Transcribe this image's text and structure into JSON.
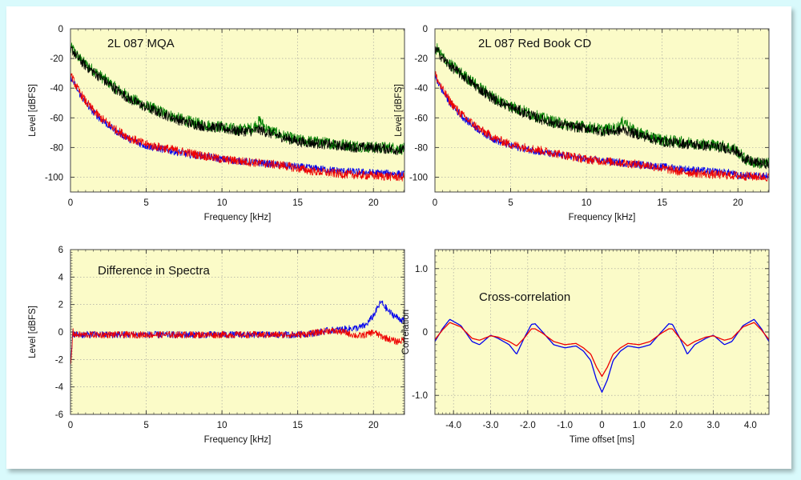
{
  "chart_data": [
    {
      "type": "line",
      "title": "2L 087 MQA",
      "xlabel": "Frequency [kHz]",
      "ylabel": "Level [dBFS]",
      "xlim": [
        0,
        22.05
      ],
      "ylim": [
        -110,
        0
      ],
      "x_ticks": [
        0,
        5,
        10,
        15,
        20
      ],
      "y_ticks": [
        0,
        -20,
        -40,
        -60,
        -80,
        -100
      ],
      "grid": true,
      "series": [
        {
          "color": "#008000",
          "noise": 4,
          "x": [
            0,
            0.1,
            0.3,
            0.6,
            1,
            1.5,
            2,
            3,
            4,
            5,
            6,
            7,
            8,
            9,
            10,
            11,
            12,
            12.5,
            13,
            14,
            15,
            16,
            17,
            18,
            19,
            20,
            21,
            22
          ],
          "values": [
            -15,
            -13,
            -16,
            -20,
            -24,
            -28,
            -32,
            -40,
            -47,
            -52,
            -56,
            -60,
            -63,
            -65,
            -66,
            -68,
            -67,
            -62,
            -68,
            -72,
            -75,
            -76,
            -77,
            -78,
            -79,
            -80,
            -80,
            -81
          ]
        },
        {
          "color": "#000000",
          "noise": 3.5,
          "x": [
            0,
            0.1,
            0.3,
            0.6,
            1,
            1.5,
            2,
            3,
            4,
            5,
            6,
            7,
            8,
            9,
            10,
            11,
            12,
            12.5,
            13,
            14,
            15,
            16,
            17,
            18,
            19,
            20,
            21,
            22
          ],
          "values": [
            -16,
            -14,
            -17,
            -21,
            -25,
            -29,
            -33,
            -41,
            -48,
            -53,
            -57,
            -61,
            -64,
            -66,
            -67,
            -69,
            -69,
            -68,
            -70,
            -73,
            -76,
            -77,
            -78,
            -79,
            -80,
            -80,
            -81,
            -82
          ]
        },
        {
          "color": "#0000ee",
          "noise": 2.5,
          "x": [
            0,
            0.2,
            0.5,
            1,
            1.5,
            2,
            3,
            4,
            5,
            6,
            7,
            8,
            9,
            10,
            12,
            14,
            15,
            16,
            17,
            18,
            20,
            22
          ],
          "values": [
            -32,
            -36,
            -42,
            -50,
            -56,
            -61,
            -69,
            -75,
            -79,
            -81,
            -83,
            -85,
            -86,
            -88,
            -90,
            -92,
            -93,
            -94,
            -95,
            -96,
            -97,
            -98
          ]
        },
        {
          "color": "#ee0000",
          "noise": 3,
          "x": [
            0,
            0.2,
            0.5,
            1,
            1.5,
            2,
            3,
            4,
            5,
            6,
            7,
            8,
            9,
            10,
            12,
            14,
            15,
            16,
            17,
            18,
            20,
            22
          ],
          "values": [
            -30,
            -35,
            -41,
            -49,
            -55,
            -60,
            -68,
            -74,
            -78,
            -80,
            -82,
            -84,
            -86,
            -88,
            -90,
            -92,
            -94,
            -96,
            -97,
            -98,
            -99,
            -100
          ]
        }
      ]
    },
    {
      "type": "line",
      "title": "2L 087 Red Book CD",
      "xlabel": "Frequency [kHz]",
      "ylabel": "Level [dBFS]",
      "xlim": [
        0,
        22.05
      ],
      "ylim": [
        -110,
        0
      ],
      "x_ticks": [
        0,
        5,
        10,
        15,
        20
      ],
      "y_ticks": [
        0,
        -20,
        -40,
        -60,
        -80,
        -100
      ],
      "grid": true,
      "series": [
        {
          "color": "#008000",
          "noise": 4,
          "x": [
            0,
            0.1,
            0.3,
            0.6,
            1,
            1.5,
            2,
            3,
            4,
            5,
            6,
            7,
            8,
            9,
            10,
            11,
            12,
            12.5,
            13,
            14,
            15,
            16,
            17,
            18,
            19,
            19.8,
            20.5,
            21,
            22
          ],
          "values": [
            -15,
            -13,
            -16,
            -20,
            -24,
            -28,
            -32,
            -40,
            -47,
            -52,
            -56,
            -60,
            -63,
            -65,
            -66,
            -68,
            -67,
            -62,
            -68,
            -72,
            -75,
            -76,
            -77,
            -78,
            -79,
            -81,
            -88,
            -90,
            -91
          ]
        },
        {
          "color": "#000000",
          "noise": 3.5,
          "x": [
            0,
            0.1,
            0.3,
            0.6,
            1,
            1.5,
            2,
            3,
            4,
            5,
            6,
            7,
            8,
            9,
            10,
            11,
            12,
            12.5,
            13,
            14,
            15,
            16,
            17,
            18,
            19,
            19.8,
            20.5,
            21,
            22
          ],
          "values": [
            -16,
            -14,
            -17,
            -21,
            -25,
            -29,
            -33,
            -41,
            -48,
            -53,
            -57,
            -61,
            -64,
            -66,
            -67,
            -69,
            -69,
            -68,
            -70,
            -73,
            -76,
            -77,
            -78,
            -79,
            -80,
            -82,
            -88,
            -90,
            -91
          ]
        },
        {
          "color": "#0000ee",
          "noise": 2.5,
          "x": [
            0,
            0.2,
            0.5,
            1,
            1.5,
            2,
            3,
            4,
            5,
            6,
            7,
            8,
            9,
            10,
            12,
            14,
            15,
            16,
            17,
            18,
            19.5,
            20,
            22
          ],
          "values": [
            -32,
            -36,
            -42,
            -50,
            -56,
            -61,
            -69,
            -75,
            -79,
            -81,
            -83,
            -85,
            -86,
            -88,
            -90,
            -92,
            -93,
            -94,
            -95,
            -96,
            -97,
            -99,
            -99
          ]
        },
        {
          "color": "#ee0000",
          "noise": 3,
          "x": [
            0,
            0.2,
            0.5,
            1,
            1.5,
            2,
            3,
            4,
            5,
            6,
            7,
            8,
            9,
            10,
            12,
            14,
            15,
            16,
            17,
            18,
            20,
            22
          ],
          "values": [
            -30,
            -35,
            -41,
            -49,
            -55,
            -60,
            -68,
            -74,
            -78,
            -80,
            -82,
            -84,
            -86,
            -88,
            -90,
            -92,
            -94,
            -96,
            -97,
            -98,
            -99,
            -100
          ]
        }
      ]
    },
    {
      "type": "line",
      "title": "Difference in Spectra",
      "xlabel": "Frequency [kHz]",
      "ylabel": "Level [dBFS]",
      "xlim": [
        0,
        22.05
      ],
      "ylim": [
        -6,
        6
      ],
      "x_ticks": [
        0,
        5,
        10,
        15,
        20
      ],
      "y_ticks": [
        6,
        4,
        2,
        0,
        -2,
        -4,
        -6
      ],
      "grid": true,
      "series": [
        {
          "color": "#0000ee",
          "noise": 0.25,
          "x": [
            0,
            0.08,
            0.15,
            0.2,
            0.3,
            1,
            5,
            10,
            14,
            15,
            16,
            17,
            18,
            19,
            19.5,
            20,
            20.5,
            21,
            21.5,
            22
          ],
          "values": [
            -2.3,
            -1.5,
            0.1,
            -0.1,
            -0.2,
            -0.2,
            -0.2,
            -0.2,
            -0.2,
            -0.2,
            -0.1,
            0.1,
            0.2,
            0.3,
            0.5,
            1.2,
            2.2,
            1.5,
            1.1,
            0.8
          ]
        },
        {
          "color": "#ee0000",
          "noise": 0.25,
          "x": [
            0,
            0.08,
            0.15,
            0.2,
            0.3,
            1,
            5,
            10,
            14,
            15,
            16,
            17,
            18,
            19,
            19.5,
            20,
            20.5,
            21,
            21.5,
            22
          ],
          "values": [
            -2.5,
            -1.5,
            0.1,
            -0.1,
            -0.2,
            -0.2,
            -0.2,
            -0.2,
            -0.2,
            -0.2,
            -0.1,
            0.1,
            0,
            -0.3,
            -0.2,
            0,
            -0.3,
            -0.5,
            -0.7,
            -0.6
          ]
        }
      ]
    },
    {
      "type": "line",
      "title": "Cross-correlation",
      "xlabel": "Time offset [ms]",
      "ylabel": "Correlation",
      "xlim": [
        -4.5,
        4.5
      ],
      "ylim": [
        -1.3,
        1.3
      ],
      "x_ticks": [
        -4.0,
        -3.0,
        -2.0,
        -1.0,
        0,
        1.0,
        2.0,
        3.0,
        4.0
      ],
      "x_tick_labels": [
        "-4.0",
        "-3.0",
        "-2.0",
        "-1.0",
        "0",
        "1.0",
        "2.0",
        "3.0",
        "4.0"
      ],
      "y_ticks": [
        1.0,
        0,
        -1.0
      ],
      "y_tick_labels": [
        "1.0",
        "0",
        "-1.0"
      ],
      "grid": true,
      "series": [
        {
          "color": "#0000ee",
          "noise": 0,
          "x": [
            -4.5,
            -4.3,
            -4.1,
            -3.8,
            -3.5,
            -3.3,
            -3,
            -2.8,
            -2.5,
            -2.3,
            -2.1,
            -1.9,
            -1.8,
            -1.6,
            -1.3,
            -1,
            -0.7,
            -0.5,
            -0.3,
            -0.15,
            0,
            0.15,
            0.3,
            0.5,
            0.7,
            1,
            1.3,
            1.6,
            1.8,
            1.9,
            2.1,
            2.3,
            2.5,
            2.8,
            3,
            3.3,
            3.5,
            3.8,
            4.1,
            4.3,
            4.5
          ],
          "values": [
            -0.15,
            0.05,
            0.2,
            0.1,
            -0.15,
            -0.2,
            -0.05,
            -0.1,
            -0.2,
            -0.35,
            -0.1,
            0.12,
            0.13,
            0,
            -0.2,
            -0.25,
            -0.22,
            -0.3,
            -0.45,
            -0.75,
            -0.95,
            -0.75,
            -0.45,
            -0.3,
            -0.22,
            -0.25,
            -0.2,
            0,
            0.13,
            0.12,
            -0.1,
            -0.35,
            -0.2,
            -0.1,
            -0.05,
            -0.2,
            -0.15,
            0.1,
            0.2,
            0.05,
            -0.15
          ]
        },
        {
          "color": "#ee0000",
          "noise": 0,
          "x": [
            -4.5,
            -4.3,
            -4.1,
            -3.8,
            -3.5,
            -3.3,
            -3,
            -2.8,
            -2.5,
            -2.3,
            -2.1,
            -1.9,
            -1.8,
            -1.6,
            -1.3,
            -1,
            -0.7,
            -0.5,
            -0.3,
            -0.15,
            0,
            0.15,
            0.3,
            0.5,
            0.7,
            1,
            1.3,
            1.6,
            1.8,
            1.9,
            2.1,
            2.3,
            2.5,
            2.8,
            3,
            3.3,
            3.5,
            3.8,
            4.1,
            4.3,
            4.5
          ],
          "values": [
            -0.12,
            0.03,
            0.15,
            0.08,
            -0.1,
            -0.13,
            -0.06,
            -0.08,
            -0.15,
            -0.22,
            -0.1,
            0.05,
            0.05,
            -0.02,
            -0.15,
            -0.2,
            -0.18,
            -0.25,
            -0.35,
            -0.55,
            -0.7,
            -0.55,
            -0.35,
            -0.25,
            -0.18,
            -0.2,
            -0.15,
            -0.02,
            0.05,
            0.05,
            -0.1,
            -0.22,
            -0.15,
            -0.08,
            -0.06,
            -0.13,
            -0.1,
            0.08,
            0.15,
            0.03,
            -0.12
          ]
        }
      ]
    }
  ]
}
